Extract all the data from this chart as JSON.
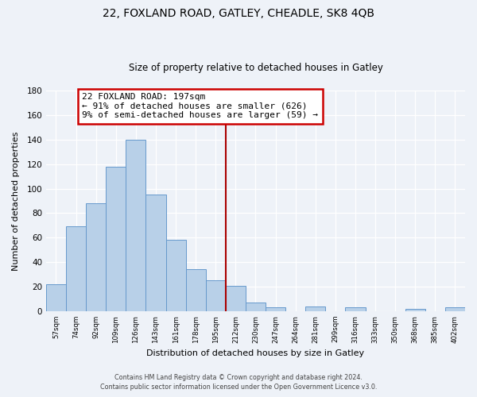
{
  "title": "22, FOXLAND ROAD, GATLEY, CHEADLE, SK8 4QB",
  "subtitle": "Size of property relative to detached houses in Gatley",
  "xlabel": "Distribution of detached houses by size in Gatley",
  "ylabel": "Number of detached properties",
  "bar_labels": [
    "57sqm",
    "74sqm",
    "92sqm",
    "109sqm",
    "126sqm",
    "143sqm",
    "161sqm",
    "178sqm",
    "195sqm",
    "212sqm",
    "230sqm",
    "247sqm",
    "264sqm",
    "281sqm",
    "299sqm",
    "316sqm",
    "333sqm",
    "350sqm",
    "368sqm",
    "385sqm",
    "402sqm"
  ],
  "bar_heights": [
    22,
    69,
    88,
    118,
    140,
    95,
    58,
    34,
    25,
    21,
    7,
    3,
    0,
    4,
    0,
    3,
    0,
    0,
    2,
    0,
    3
  ],
  "bar_color": "#b8d0e8",
  "bar_edge_color": "#6699cc",
  "vline_x": 8.5,
  "vline_color": "#aa0000",
  "annotation_title": "22 FOXLAND ROAD: 197sqm",
  "annotation_line1": "← 91% of detached houses are smaller (626)",
  "annotation_line2": "9% of semi-detached houses are larger (59) →",
  "annotation_box_color": "#ffffff",
  "annotation_box_edge": "#cc0000",
  "ylim": [
    0,
    180
  ],
  "yticks": [
    0,
    20,
    40,
    60,
    80,
    100,
    120,
    140,
    160,
    180
  ],
  "footer1": "Contains HM Land Registry data © Crown copyright and database right 2024.",
  "footer2": "Contains public sector information licensed under the Open Government Licence v3.0.",
  "background_color": "#eef2f8"
}
